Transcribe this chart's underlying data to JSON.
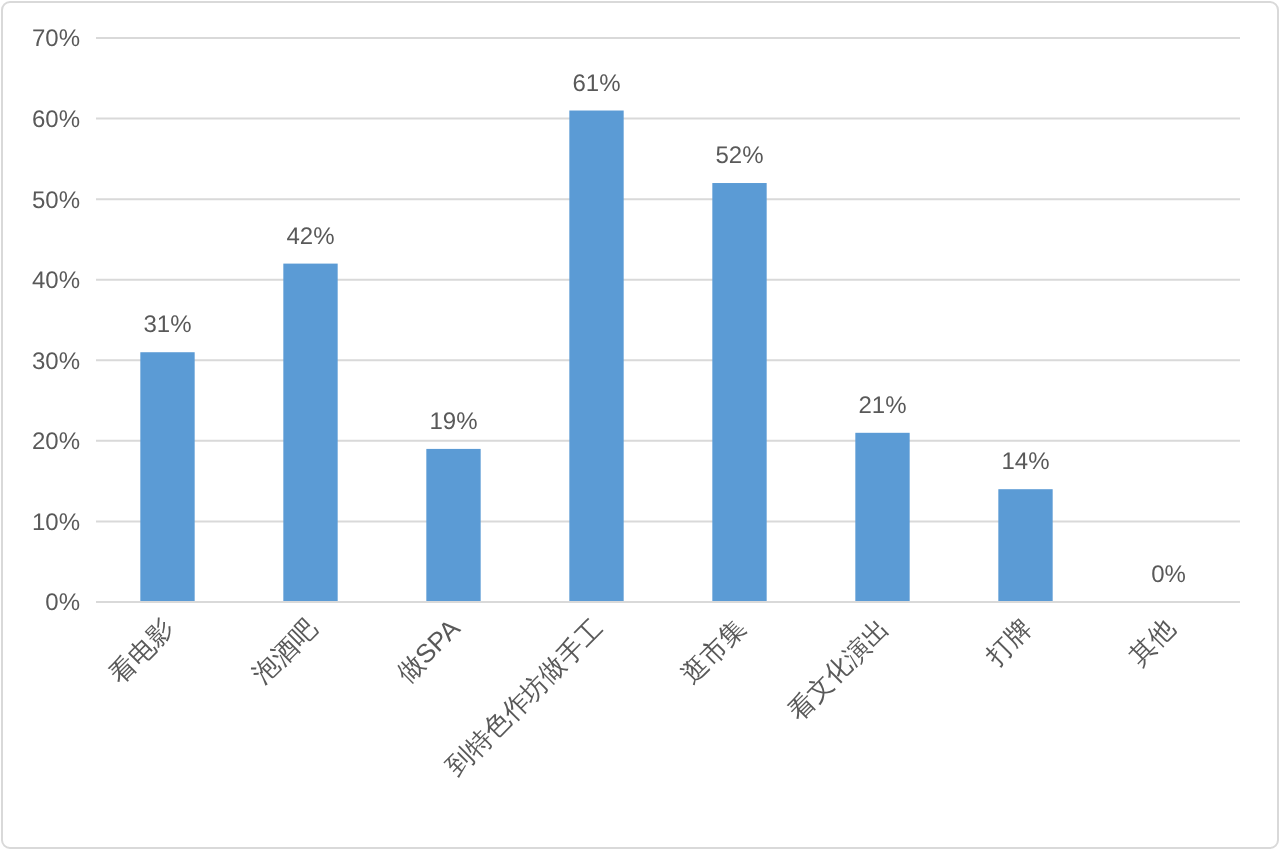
{
  "chart_data": {
    "type": "bar",
    "categories": [
      "看电影",
      "泡酒吧",
      "做SPA",
      "到特色作坊做手工",
      "逛市集",
      "看文化演出",
      "打牌",
      "其他"
    ],
    "values": [
      31,
      42,
      19,
      61,
      52,
      21,
      14,
      0
    ],
    "value_labels": [
      "31%",
      "42%",
      "19%",
      "61%",
      "52%",
      "21%",
      "14%",
      "0%"
    ],
    "color": "#5b9bd5",
    "ylim": [
      0,
      70
    ],
    "yticks": [
      {
        "value": 0,
        "label": "0%"
      },
      {
        "value": 10,
        "label": "10%"
      },
      {
        "value": 20,
        "label": "20%"
      },
      {
        "value": 30,
        "label": "30%"
      },
      {
        "value": 40,
        "label": "40%"
      },
      {
        "value": 50,
        "label": "50%"
      },
      {
        "value": 60,
        "label": "60%"
      },
      {
        "value": 70,
        "label": "70%"
      }
    ],
    "grid": "y"
  }
}
